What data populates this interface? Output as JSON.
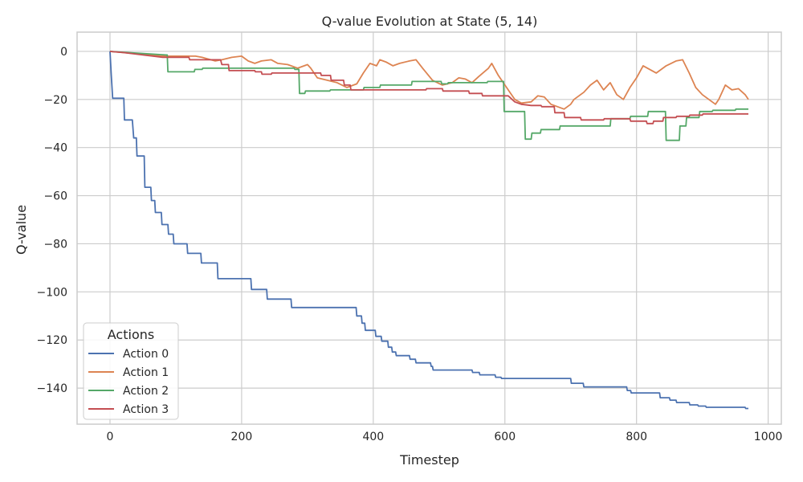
{
  "chart_data": {
    "type": "line",
    "title": "Q-value Evolution at State (5, 14)",
    "xlabel": "Timestep",
    "ylabel": "Q-value",
    "xlim": [
      -50,
      1020
    ],
    "ylim": [
      -155,
      8
    ],
    "xticks": [
      0,
      200,
      400,
      600,
      800,
      1000
    ],
    "yticks": [
      0,
      -20,
      -40,
      -60,
      -80,
      -100,
      -120,
      -140
    ],
    "xtick_labels": [
      "0",
      "200",
      "400",
      "600",
      "800",
      "1000"
    ],
    "ytick_labels": [
      "0",
      "−20",
      "−40",
      "−60",
      "−80",
      "−100",
      "−120",
      "−140"
    ],
    "grid": true,
    "legend": {
      "title": "Actions",
      "position": "bottom-left"
    },
    "series": [
      {
        "name": "Action 0",
        "color": "#4c72b0",
        "step": true,
        "points": [
          [
            0,
            0
          ],
          [
            2,
            -10
          ],
          [
            4,
            -19.5
          ],
          [
            21,
            -19.5
          ],
          [
            22,
            -28.5
          ],
          [
            34,
            -28.5
          ],
          [
            36,
            -36
          ],
          [
            40,
            -36
          ],
          [
            41,
            -43.5
          ],
          [
            52,
            -43.5
          ],
          [
            53,
            -56.5
          ],
          [
            62,
            -56.5
          ],
          [
            63,
            -62
          ],
          [
            68,
            -62
          ],
          [
            69,
            -67
          ],
          [
            78,
            -67
          ],
          [
            79,
            -72
          ],
          [
            88,
            -72
          ],
          [
            89,
            -76
          ],
          [
            96,
            -76
          ],
          [
            97,
            -80
          ],
          [
            117,
            -80
          ],
          [
            118,
            -84
          ],
          [
            138,
            -84
          ],
          [
            139,
            -88
          ],
          [
            163,
            -88
          ],
          [
            164,
            -94.5
          ],
          [
            214,
            -94.5
          ],
          [
            215,
            -99
          ],
          [
            238,
            -99
          ],
          [
            239,
            -103
          ],
          [
            275,
            -103
          ],
          [
            276,
            -106.5
          ],
          [
            374,
            -106.5
          ],
          [
            375,
            -110
          ],
          [
            382,
            -110
          ],
          [
            383,
            -113
          ],
          [
            387,
            -113
          ],
          [
            388,
            -116
          ],
          [
            403,
            -116
          ],
          [
            404,
            -118.5
          ],
          [
            412,
            -118.5
          ],
          [
            413,
            -120.5
          ],
          [
            422,
            -120.5
          ],
          [
            423,
            -123
          ],
          [
            428,
            -123
          ],
          [
            429,
            -125
          ],
          [
            434,
            -125
          ],
          [
            435,
            -126.5
          ],
          [
            455,
            -126.5
          ],
          [
            456,
            -128
          ],
          [
            464,
            -128
          ],
          [
            465,
            -129.5
          ],
          [
            487,
            -129.5
          ],
          [
            488,
            -131
          ],
          [
            490,
            -131
          ],
          [
            491,
            -132.5
          ],
          [
            550,
            -132.5
          ],
          [
            551,
            -133.5
          ],
          [
            561,
            -133.5
          ],
          [
            562,
            -134.5
          ],
          [
            585,
            -134.5
          ],
          [
            586,
            -135.5
          ],
          [
            594,
            -135.5
          ],
          [
            595,
            -136
          ],
          [
            700,
            -136
          ],
          [
            701,
            -138
          ],
          [
            719,
            -138
          ],
          [
            720,
            -139.5
          ],
          [
            785,
            -139.5
          ],
          [
            786,
            -141
          ],
          [
            791,
            -141
          ],
          [
            792,
            -142
          ],
          [
            835,
            -142
          ],
          [
            836,
            -144
          ],
          [
            850,
            -144
          ],
          [
            851,
            -145
          ],
          [
            860,
            -145
          ],
          [
            861,
            -146
          ],
          [
            880,
            -146
          ],
          [
            881,
            -147
          ],
          [
            893,
            -147
          ],
          [
            894,
            -147.5
          ],
          [
            905,
            -147.5
          ],
          [
            906,
            -148
          ],
          [
            965,
            -148
          ],
          [
            966,
            -148.5
          ],
          [
            970,
            -148.5
          ]
        ]
      },
      {
        "name": "Action 1",
        "color": "#dd8452",
        "step": false,
        "points": [
          [
            0,
            0
          ],
          [
            40,
            -1
          ],
          [
            80,
            -2
          ],
          [
            130,
            -2
          ],
          [
            140,
            -2.5
          ],
          [
            160,
            -4
          ],
          [
            170,
            -3.5
          ],
          [
            185,
            -2.5
          ],
          [
            200,
            -2
          ],
          [
            210,
            -4
          ],
          [
            220,
            -5
          ],
          [
            230,
            -4
          ],
          [
            245,
            -3.5
          ],
          [
            255,
            -5
          ],
          [
            270,
            -5.5
          ],
          [
            285,
            -7
          ],
          [
            300,
            -5.5
          ],
          [
            305,
            -7
          ],
          [
            315,
            -11
          ],
          [
            330,
            -12
          ],
          [
            345,
            -13
          ],
          [
            360,
            -15
          ],
          [
            375,
            -13.5
          ],
          [
            385,
            -9
          ],
          [
            395,
            -5
          ],
          [
            405,
            -6
          ],
          [
            410,
            -3.5
          ],
          [
            420,
            -4.5
          ],
          [
            430,
            -6
          ],
          [
            440,
            -5
          ],
          [
            455,
            -4
          ],
          [
            465,
            -3.5
          ],
          [
            475,
            -7
          ],
          [
            490,
            -12
          ],
          [
            505,
            -14
          ],
          [
            520,
            -13
          ],
          [
            530,
            -11
          ],
          [
            540,
            -11.5
          ],
          [
            550,
            -13
          ],
          [
            560,
            -10.5
          ],
          [
            575,
            -7
          ],
          [
            580,
            -5
          ],
          [
            590,
            -10
          ],
          [
            605,
            -16
          ],
          [
            615,
            -20
          ],
          [
            625,
            -21.5
          ],
          [
            640,
            -21
          ],
          [
            650,
            -18.5
          ],
          [
            660,
            -19
          ],
          [
            670,
            -22
          ],
          [
            680,
            -23
          ],
          [
            690,
            -24
          ],
          [
            700,
            -22
          ],
          [
            705,
            -20
          ],
          [
            720,
            -17
          ],
          [
            730,
            -14
          ],
          [
            740,
            -12
          ],
          [
            750,
            -16
          ],
          [
            760,
            -13
          ],
          [
            770,
            -18
          ],
          [
            780,
            -20
          ],
          [
            790,
            -15
          ],
          [
            800,
            -11
          ],
          [
            810,
            -6
          ],
          [
            820,
            -7.5
          ],
          [
            830,
            -9
          ],
          [
            845,
            -6
          ],
          [
            860,
            -4
          ],
          [
            870,
            -3.5
          ],
          [
            880,
            -9
          ],
          [
            890,
            -15
          ],
          [
            900,
            -18
          ],
          [
            910,
            -20
          ],
          [
            920,
            -22
          ],
          [
            925,
            -20
          ],
          [
            935,
            -14
          ],
          [
            945,
            -16
          ],
          [
            955,
            -15.5
          ],
          [
            965,
            -18
          ],
          [
            970,
            -20
          ]
        ]
      },
      {
        "name": "Action 2",
        "color": "#55a868",
        "step": true,
        "points": [
          [
            0,
            0
          ],
          [
            85,
            -1.5
          ],
          [
            87,
            -1.5
          ],
          [
            88,
            -8.5
          ],
          [
            128,
            -8.5
          ],
          [
            129,
            -7.5
          ],
          [
            140,
            -7.5
          ],
          [
            141,
            -7
          ],
          [
            280,
            -7
          ],
          [
            281,
            -7.5
          ],
          [
            287,
            -7.5
          ],
          [
            288,
            -17.5
          ],
          [
            296,
            -17.5
          ],
          [
            297,
            -16.5
          ],
          [
            334,
            -16.5
          ],
          [
            335,
            -16
          ],
          [
            385,
            -16
          ],
          [
            386,
            -15
          ],
          [
            410,
            -15
          ],
          [
            411,
            -14
          ],
          [
            458,
            -14
          ],
          [
            459,
            -12.5
          ],
          [
            503,
            -12.5
          ],
          [
            504,
            -13.5
          ],
          [
            513,
            -13.5
          ],
          [
            514,
            -13
          ],
          [
            573,
            -13
          ],
          [
            574,
            -12.5
          ],
          [
            598,
            -12.5
          ],
          [
            599,
            -25
          ],
          [
            630,
            -25
          ],
          [
            631,
            -36.5
          ],
          [
            640,
            -36.5
          ],
          [
            641,
            -34
          ],
          [
            654,
            -34
          ],
          [
            655,
            -32.5
          ],
          [
            683,
            -32.5
          ],
          [
            684,
            -31
          ],
          [
            760,
            -31
          ],
          [
            761,
            -28
          ],
          [
            790,
            -28
          ],
          [
            791,
            -27
          ],
          [
            817,
            -27
          ],
          [
            818,
            -25
          ],
          [
            844,
            -25
          ],
          [
            845,
            -37
          ],
          [
            865,
            -37
          ],
          [
            866,
            -31
          ],
          [
            875,
            -31
          ],
          [
            876,
            -27.5
          ],
          [
            895,
            -27.5
          ],
          [
            896,
            -25
          ],
          [
            915,
            -25
          ],
          [
            916,
            -24.5
          ],
          [
            950,
            -24.5
          ],
          [
            951,
            -24
          ],
          [
            970,
            -24
          ]
        ]
      },
      {
        "name": "Action 3",
        "color": "#c44e52",
        "step": true,
        "points": [
          [
            0,
            0
          ],
          [
            20,
            -0.5
          ],
          [
            50,
            -1.5
          ],
          [
            80,
            -2.5
          ],
          [
            120,
            -2.5
          ],
          [
            121,
            -3.5
          ],
          [
            168,
            -3.5
          ],
          [
            170,
            -5.5
          ],
          [
            180,
            -5.5
          ],
          [
            181,
            -8
          ],
          [
            220,
            -8
          ],
          [
            221,
            -8.5
          ],
          [
            230,
            -8.5
          ],
          [
            231,
            -9.5
          ],
          [
            245,
            -9.5
          ],
          [
            246,
            -9
          ],
          [
            320,
            -9
          ],
          [
            321,
            -10
          ],
          [
            335,
            -10
          ],
          [
            336,
            -12
          ],
          [
            355,
            -12
          ],
          [
            356,
            -14
          ],
          [
            365,
            -14
          ],
          [
            366,
            -16
          ],
          [
            480,
            -16
          ],
          [
            481,
            -15.5
          ],
          [
            505,
            -15.5
          ],
          [
            506,
            -16.5
          ],
          [
            545,
            -16.5
          ],
          [
            546,
            -17.5
          ],
          [
            565,
            -17.5
          ],
          [
            566,
            -18.5
          ],
          [
            605,
            -18.5
          ],
          [
            615,
            -21
          ],
          [
            625,
            -22
          ],
          [
            640,
            -22.5
          ],
          [
            655,
            -22.5
          ],
          [
            656,
            -23
          ],
          [
            675,
            -23
          ],
          [
            676,
            -25.5
          ],
          [
            690,
            -25.5
          ],
          [
            691,
            -27.5
          ],
          [
            715,
            -27.5
          ],
          [
            716,
            -28.5
          ],
          [
            750,
            -28.5
          ],
          [
            751,
            -28
          ],
          [
            790,
            -28
          ],
          [
            791,
            -29
          ],
          [
            815,
            -29
          ],
          [
            816,
            -30
          ],
          [
            825,
            -30
          ],
          [
            826,
            -29
          ],
          [
            840,
            -29
          ],
          [
            841,
            -27.5
          ],
          [
            860,
            -27.5
          ],
          [
            861,
            -27
          ],
          [
            880,
            -27
          ],
          [
            881,
            -26.5
          ],
          [
            900,
            -26.5
          ],
          [
            901,
            -26
          ],
          [
            970,
            -26
          ]
        ]
      }
    ]
  }
}
